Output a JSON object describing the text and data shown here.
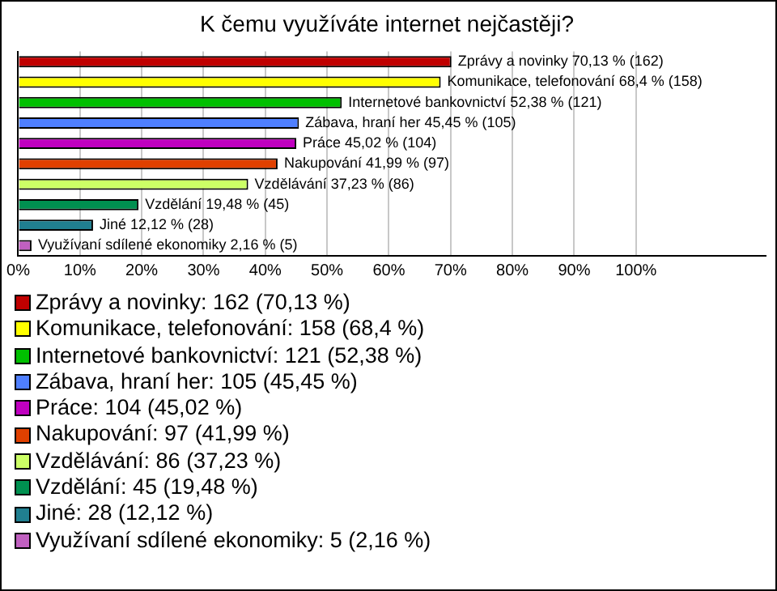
{
  "chart_data": {
    "type": "bar",
    "orientation": "horizontal",
    "stacked": true,
    "title": "K čemu využíváte internet nejčastěji?",
    "categories": [
      null,
      null,
      null,
      null,
      null,
      null,
      null,
      null,
      null,
      null
    ],
    "series": [
      {
        "name": "Zprávy a novinky: 162 (70,13 %)",
        "color": "#c00000",
        "values": [
          70.13,
          null,
          null,
          null,
          null,
          null,
          null,
          null,
          null,
          null
        ],
        "value_labels": [
          "Zprávy a novinky 70,13 % (162)",
          null,
          null,
          null,
          null,
          null,
          null,
          null,
          null,
          null
        ]
      },
      {
        "name": "Komunikace, telefonování: 158 (68,4 %)",
        "color": "#ffff00",
        "values": [
          null,
          68.4,
          null,
          null,
          null,
          null,
          null,
          null,
          null,
          null
        ],
        "value_labels": [
          null,
          "Komunikace, telefonování 68,4 % (158)",
          null,
          null,
          null,
          null,
          null,
          null,
          null,
          null
        ]
      },
      {
        "name": "Internetové bankovnictví: 121 (52,38 %)",
        "color": "#00c000",
        "values": [
          null,
          null,
          52.38,
          null,
          null,
          null,
          null,
          null,
          null,
          null
        ],
        "value_labels": [
          null,
          null,
          "Internetové bankovnictví 52,38 % (121)",
          null,
          null,
          null,
          null,
          null,
          null,
          null
        ]
      },
      {
        "name": "Zábava, hraní her: 105 (45,45 %)",
        "color": "#4f7fff",
        "values": [
          null,
          null,
          null,
          45.45,
          null,
          null,
          null,
          null,
          null,
          null
        ],
        "value_labels": [
          null,
          null,
          null,
          "Zábava, hraní her 45,45 % (105)",
          null,
          null,
          null,
          null,
          null,
          null
        ]
      },
      {
        "name": "Práce: 104 (45,02 %)",
        "color": "#c000c0",
        "values": [
          null,
          null,
          null,
          null,
          45.02,
          null,
          null,
          null,
          null,
          null
        ],
        "value_labels": [
          null,
          null,
          null,
          null,
          "Práce 45,02 % (104)",
          null,
          null,
          null,
          null,
          null
        ]
      },
      {
        "name": "Nakupování: 97 (41,99 %)",
        "color": "#e04000",
        "values": [
          null,
          null,
          null,
          null,
          null,
          41.99,
          null,
          null,
          null,
          null
        ],
        "value_labels": [
          null,
          null,
          null,
          null,
          null,
          "Nakupování 41,99 % (97)",
          null,
          null,
          null,
          null
        ]
      },
      {
        "name": "Vzdělávání: 86 (37,23 %)",
        "color": "#ccff66",
        "values": [
          null,
          null,
          null,
          null,
          null,
          null,
          37.23,
          null,
          null,
          null
        ],
        "value_labels": [
          null,
          null,
          null,
          null,
          null,
          null,
          "Vzdělávání 37,23 % (86)",
          null,
          null,
          null
        ]
      },
      {
        "name": "Vzdělání: 45 (19,48 %)",
        "color": "#009050",
        "values": [
          null,
          null,
          null,
          null,
          null,
          null,
          null,
          19.48,
          null,
          null
        ],
        "value_labels": [
          null,
          null,
          null,
          null,
          null,
          null,
          null,
          "Vzdělání 19,48 % (45)",
          null,
          null
        ]
      },
      {
        "name": "Jiné: 28 (12,12 %)",
        "color": "#207f90",
        "values": [
          null,
          null,
          null,
          null,
          null,
          null,
          null,
          null,
          12.12,
          null
        ],
        "value_labels": [
          null,
          null,
          null,
          null,
          null,
          null,
          null,
          null,
          "Jiné 12,12 % (28)",
          null
        ]
      },
      {
        "name": "Využívaní sdílené ekonomiky: 5 (2,16 %)",
        "color": "#c060c0",
        "values": [
          null,
          null,
          null,
          null,
          null,
          null,
          null,
          null,
          null,
          2.16
        ],
        "value_labels": [
          null,
          null,
          null,
          null,
          null,
          null,
          null,
          null,
          null,
          "Využívaní sdílené ekonomiky 2,16 % (5)"
        ]
      }
    ],
    "xlim": [
      0,
      121
    ],
    "xticks": [
      {
        "value": 0,
        "label": "0%"
      },
      {
        "value": 10,
        "label": "10%"
      },
      {
        "value": 20,
        "label": "20%"
      },
      {
        "value": 30,
        "label": "30%"
      },
      {
        "value": 40,
        "label": "40%"
      },
      {
        "value": 50,
        "label": "50%"
      },
      {
        "value": 60,
        "label": "60%"
      },
      {
        "value": 70,
        "label": "70%"
      },
      {
        "value": 80,
        "label": "80%"
      },
      {
        "value": 90,
        "label": "90%"
      },
      {
        "value": 100,
        "label": "100%"
      }
    ],
    "grid": "x",
    "legend": "bottom"
  }
}
